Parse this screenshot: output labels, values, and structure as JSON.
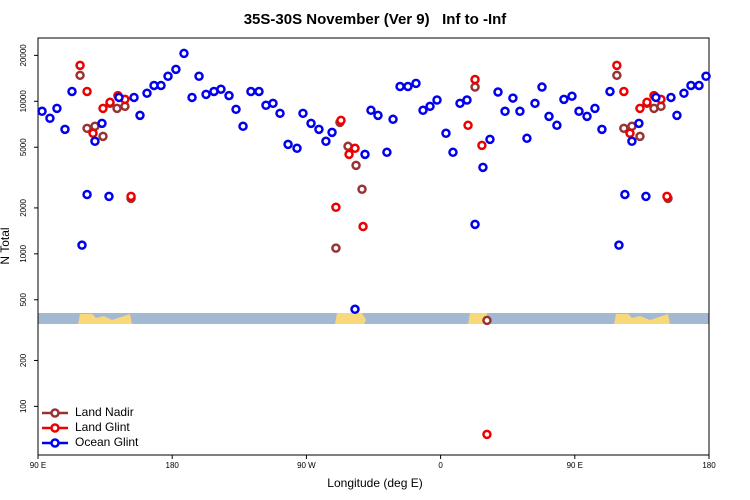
{
  "chart_data": {
    "type": "scatter",
    "title": "35S-30S November (Ver 9)   Inf to -Inf",
    "x_label": "Longitude (deg E)",
    "y_label": "N Total",
    "xlim": [
      90,
      540
    ],
    "xticks": [
      {
        "value": 90,
        "label": "90 E"
      },
      {
        "value": 180,
        "label": "180"
      },
      {
        "value": 270,
        "label": "90 W"
      },
      {
        "value": 360,
        "label": "0"
      },
      {
        "value": 450,
        "label": "90 E"
      },
      {
        "value": 540,
        "label": "180"
      }
    ],
    "ylim": [
      48,
      26000
    ],
    "yticks": [
      100,
      200,
      500,
      1000,
      2000,
      5000,
      10000,
      20000
    ],
    "y_scale": "log",
    "legend": "lower left",
    "series": [
      {
        "name": "Land Nadir",
        "color": "#993333",
        "x": [
          118.2,
          122.9,
          128.2,
          133.6,
          138.3,
          143.0,
          148.3,
          152.4,
          289.8,
          292.5,
          297.9,
          303.3,
          307.3,
          383.1,
          391.1,
          478.2,
          482.9,
          488.3,
          493.7,
          498.4,
          503.1,
          507.8,
          512.5
        ],
        "values": [
          14800,
          6650,
          6860,
          5890,
          9700,
          8990,
          9270,
          2310,
          1090,
          7280,
          5070,
          3800,
          2650,
          12400,
          366,
          14800,
          6650,
          6860,
          5890,
          9700,
          8990,
          9270,
          2310
        ]
      },
      {
        "name": "Land Glint",
        "color": "#ee0000",
        "x": [
          118.2,
          122.9,
          126.9,
          133.6,
          138.3,
          143.6,
          148.3,
          152.4,
          289.8,
          293.2,
          298.6,
          302.6,
          308.0,
          378.4,
          383.1,
          387.7,
          391.1,
          478.2,
          482.9,
          487.0,
          493.7,
          498.4,
          503.1,
          507.8,
          511.8
        ],
        "values": [
          17200,
          11600,
          6170,
          8990,
          9850,
          10900,
          10300,
          2380,
          2020,
          7500,
          4490,
          4920,
          1510,
          6960,
          13900,
          5140,
          65.5,
          17200,
          11600,
          6170,
          8990,
          9850,
          10900,
          10300,
          2380
        ]
      },
      {
        "name": "Ocean Glint",
        "color": "#0000ee",
        "x": [
          92.7,
          98.0,
          102.7,
          108.1,
          112.8,
          119.5,
          122.9,
          128.2,
          132.9,
          137.6,
          144.3,
          154.4,
          158.4,
          163.1,
          167.8,
          172.5,
          177.2,
          182.5,
          187.9,
          193.3,
          198.0,
          202.7,
          208.0,
          212.7,
          218.1,
          222.8,
          227.5,
          232.8,
          238.2,
          242.9,
          247.6,
          252.3,
          257.7,
          263.7,
          267.7,
          273.1,
          278.4,
          283.1,
          287.2,
          302.6,
          309.3,
          313.3,
          318.0,
          324.0,
          328.1,
          332.8,
          338.1,
          343.5,
          348.2,
          352.9,
          357.6,
          363.6,
          368.3,
          373.0,
          377.7,
          383.1,
          388.4,
          393.1,
          398.5,
          403.2,
          408.5,
          413.2,
          417.9,
          423.3,
          428.0,
          432.7,
          438.0,
          442.7,
          448.1,
          452.8,
          458.2,
          463.5,
          468.2,
          473.6,
          479.6,
          483.6,
          488.3,
          493.0,
          497.7,
          504.4,
          514.5,
          518.5,
          523.2,
          527.9,
          533.3,
          538.0
        ],
        "values": [
          8600,
          7740,
          8990,
          6550,
          11600,
          1140,
          2450,
          5470,
          7170,
          2380,
          10600,
          10600,
          8090,
          11300,
          12700,
          12700,
          14600,
          16200,
          20600,
          10600,
          14600,
          11100,
          11600,
          12000,
          10900,
          8860,
          6860,
          11600,
          11600,
          9420,
          9700,
          8340,
          5220,
          4920,
          8340,
          7170,
          6550,
          5470,
          6260,
          433,
          4490,
          8730,
          8090,
          4630,
          7620,
          12500,
          12500,
          13100,
          8730,
          9270,
          10200,
          6170,
          4630,
          9700,
          10200,
          1560,
          3690,
          5630,
          11500,
          8600,
          10500,
          8600,
          5720,
          9700,
          12400,
          7970,
          6960,
          10300,
          10800,
          8600,
          7970,
          8990,
          6550,
          11600,
          1140,
          2450,
          5470,
          7170,
          2380,
          10600,
          10600,
          8090,
          11300,
          12700,
          12700,
          14600
        ]
      }
    ]
  }
}
